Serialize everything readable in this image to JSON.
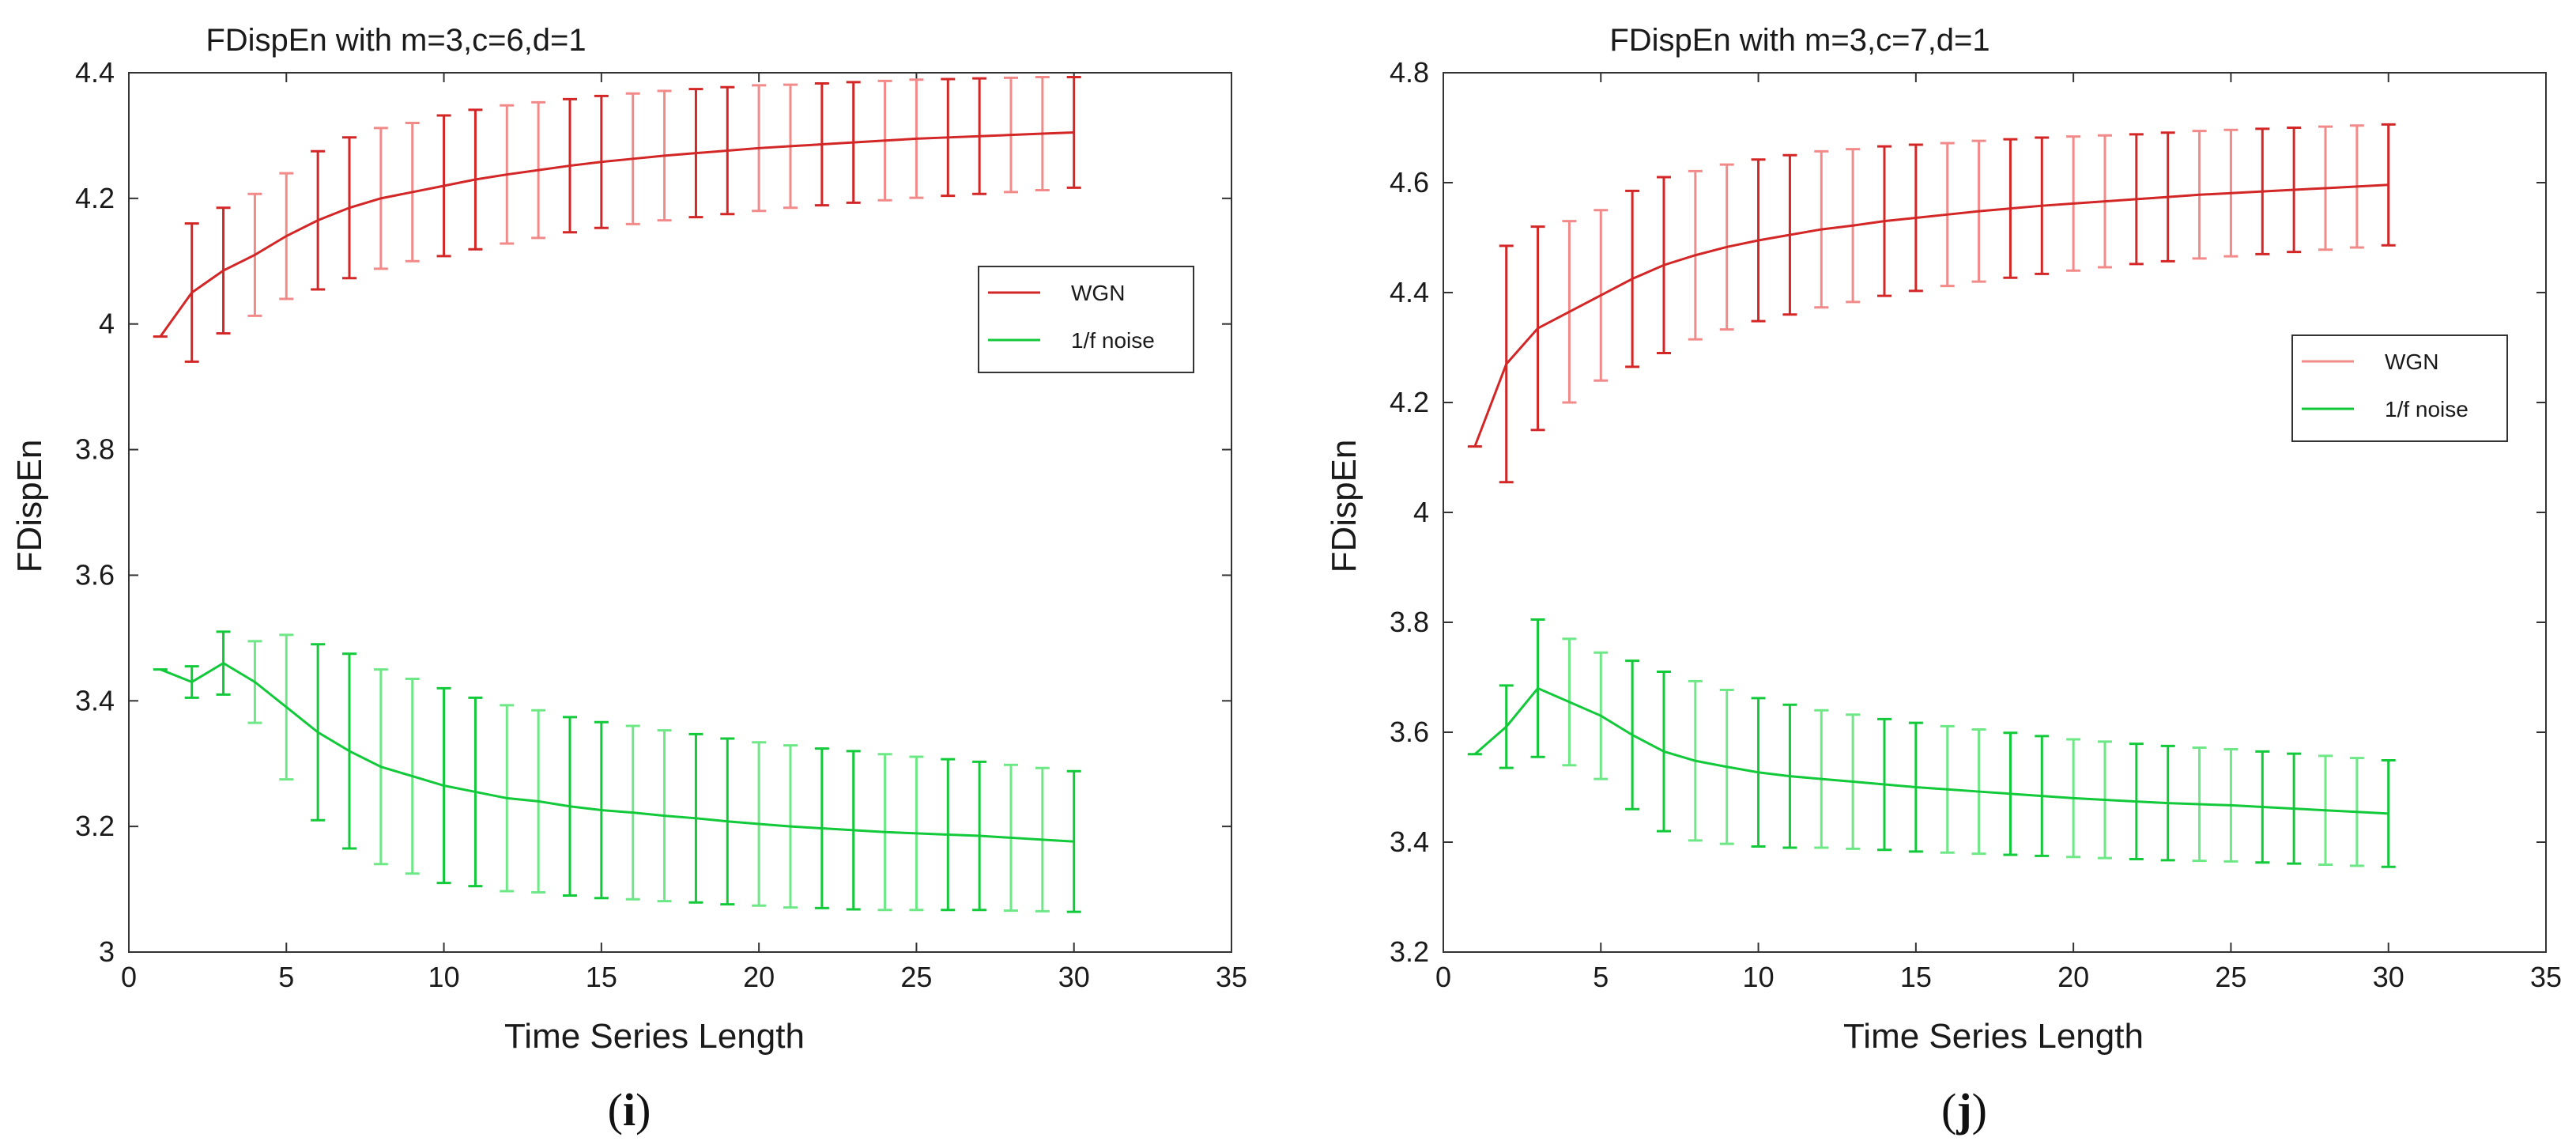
{
  "chart_data": [
    {
      "type": "line",
      "panel_label": "(i)",
      "title": "FDispEn with m=3,c=6,d=1",
      "xlabel": "Time Series Length",
      "ylabel": "FDispEn",
      "xlim": [
        0,
        35
      ],
      "ylim": [
        3,
        4.4
      ],
      "xticks": [
        "0",
        "5",
        "10",
        "15",
        "20",
        "25",
        "30",
        "35"
      ],
      "yticks": [
        "3",
        "3.2",
        "3.4",
        "3.6",
        "3.8",
        "4",
        "4.2",
        "4.4"
      ],
      "legend_position": "right",
      "x": [
        1,
        2,
        3,
        4,
        5,
        6,
        7,
        8,
        9,
        10,
        11,
        12,
        13,
        14,
        15,
        16,
        17,
        18,
        19,
        20,
        21,
        22,
        23,
        24,
        25,
        26,
        27,
        28,
        29,
        30
      ],
      "series": [
        {
          "name": "WGN",
          "color": "#d32626",
          "light_color": "#f28a8a",
          "values": [
            3.98,
            4.05,
            4.085,
            4.11,
            4.14,
            4.165,
            4.185,
            4.2,
            4.21,
            4.22,
            4.23,
            4.238,
            4.245,
            4.252,
            4.258,
            4.263,
            4.268,
            4.272,
            4.276,
            4.28,
            4.283,
            4.286,
            4.289,
            4.292,
            4.295,
            4.297,
            4.299,
            4.301,
            4.303,
            4.305
          ],
          "errors": [
            0,
            0.11,
            0.1,
            0.097,
            0.1,
            0.11,
            0.112,
            0.112,
            0.11,
            0.112,
            0.111,
            0.11,
            0.108,
            0.106,
            0.105,
            0.104,
            0.103,
            0.102,
            0.101,
            0.1,
            0.098,
            0.097,
            0.096,
            0.095,
            0.094,
            0.093,
            0.092,
            0.091,
            0.09,
            0.088
          ]
        },
        {
          "name": "1/f noise",
          "color": "#12c93a",
          "light_color": "#6ee886",
          "values": [
            3.45,
            3.43,
            3.46,
            3.43,
            3.39,
            3.35,
            3.32,
            3.295,
            3.28,
            3.265,
            3.255,
            3.245,
            3.24,
            3.232,
            3.226,
            3.222,
            3.217,
            3.213,
            3.208,
            3.204,
            3.2,
            3.197,
            3.194,
            3.191,
            3.189,
            3.187,
            3.185,
            3.182,
            3.179,
            3.176
          ],
          "errors": [
            0,
            0.025,
            0.05,
            0.065,
            0.115,
            0.14,
            0.155,
            0.155,
            0.155,
            0.155,
            0.15,
            0.148,
            0.145,
            0.142,
            0.14,
            0.138,
            0.136,
            0.134,
            0.132,
            0.13,
            0.129,
            0.127,
            0.126,
            0.124,
            0.122,
            0.12,
            0.118,
            0.116,
            0.114,
            0.112
          ]
        }
      ]
    },
    {
      "type": "line",
      "panel_label": "(j)",
      "title": "FDispEn with m=3,c=7,d=1",
      "xlabel": "Time Series Length",
      "ylabel": "FDispEn",
      "xlim": [
        0,
        35
      ],
      "ylim": [
        3.2,
        4.8
      ],
      "xticks": [
        "0",
        "5",
        "10",
        "15",
        "20",
        "25",
        "30",
        "35"
      ],
      "yticks": [
        "3.2",
        "3.4",
        "3.6",
        "3.8",
        "4",
        "4.2",
        "4.4",
        "4.6",
        "4.8"
      ],
      "legend_position": "right",
      "x": [
        1,
        2,
        3,
        4,
        5,
        6,
        7,
        8,
        9,
        10,
        11,
        12,
        13,
        14,
        15,
        16,
        17,
        18,
        19,
        20,
        21,
        22,
        23,
        24,
        25,
        26,
        27,
        28,
        29,
        30
      ],
      "series": [
        {
          "name": "WGN",
          "color": "#d32626",
          "light_color": "#f28a8a",
          "values": [
            4.12,
            4.27,
            4.335,
            4.365,
            4.395,
            4.425,
            4.45,
            4.468,
            4.483,
            4.495,
            4.505,
            4.515,
            4.522,
            4.53,
            4.536,
            4.542,
            4.548,
            4.553,
            4.558,
            4.562,
            4.566,
            4.57,
            4.574,
            4.578,
            4.581,
            4.584,
            4.587,
            4.59,
            4.593,
            4.596
          ],
          "errors": [
            0,
            0.215,
            0.185,
            0.165,
            0.155,
            0.16,
            0.16,
            0.153,
            0.15,
            0.147,
            0.145,
            0.142,
            0.139,
            0.136,
            0.133,
            0.13,
            0.128,
            0.126,
            0.124,
            0.122,
            0.12,
            0.118,
            0.117,
            0.116,
            0.115,
            0.114,
            0.113,
            0.112,
            0.111,
            0.11
          ]
        },
        {
          "name": "1/f noise",
          "color": "#12c93a",
          "light_color": "#6ee886",
          "values": [
            3.56,
            3.61,
            3.68,
            3.655,
            3.63,
            3.595,
            3.565,
            3.548,
            3.537,
            3.527,
            3.52,
            3.515,
            3.51,
            3.505,
            3.5,
            3.496,
            3.492,
            3.488,
            3.484,
            3.48,
            3.477,
            3.474,
            3.471,
            3.469,
            3.467,
            3.464,
            3.461,
            3.458,
            3.455,
            3.452
          ],
          "errors": [
            0,
            0.075,
            0.125,
            0.115,
            0.115,
            0.135,
            0.145,
            0.145,
            0.14,
            0.135,
            0.13,
            0.125,
            0.122,
            0.119,
            0.117,
            0.115,
            0.113,
            0.111,
            0.109,
            0.107,
            0.106,
            0.105,
            0.104,
            0.103,
            0.102,
            0.101,
            0.1,
            0.099,
            0.098,
            0.097
          ]
        }
      ]
    }
  ]
}
